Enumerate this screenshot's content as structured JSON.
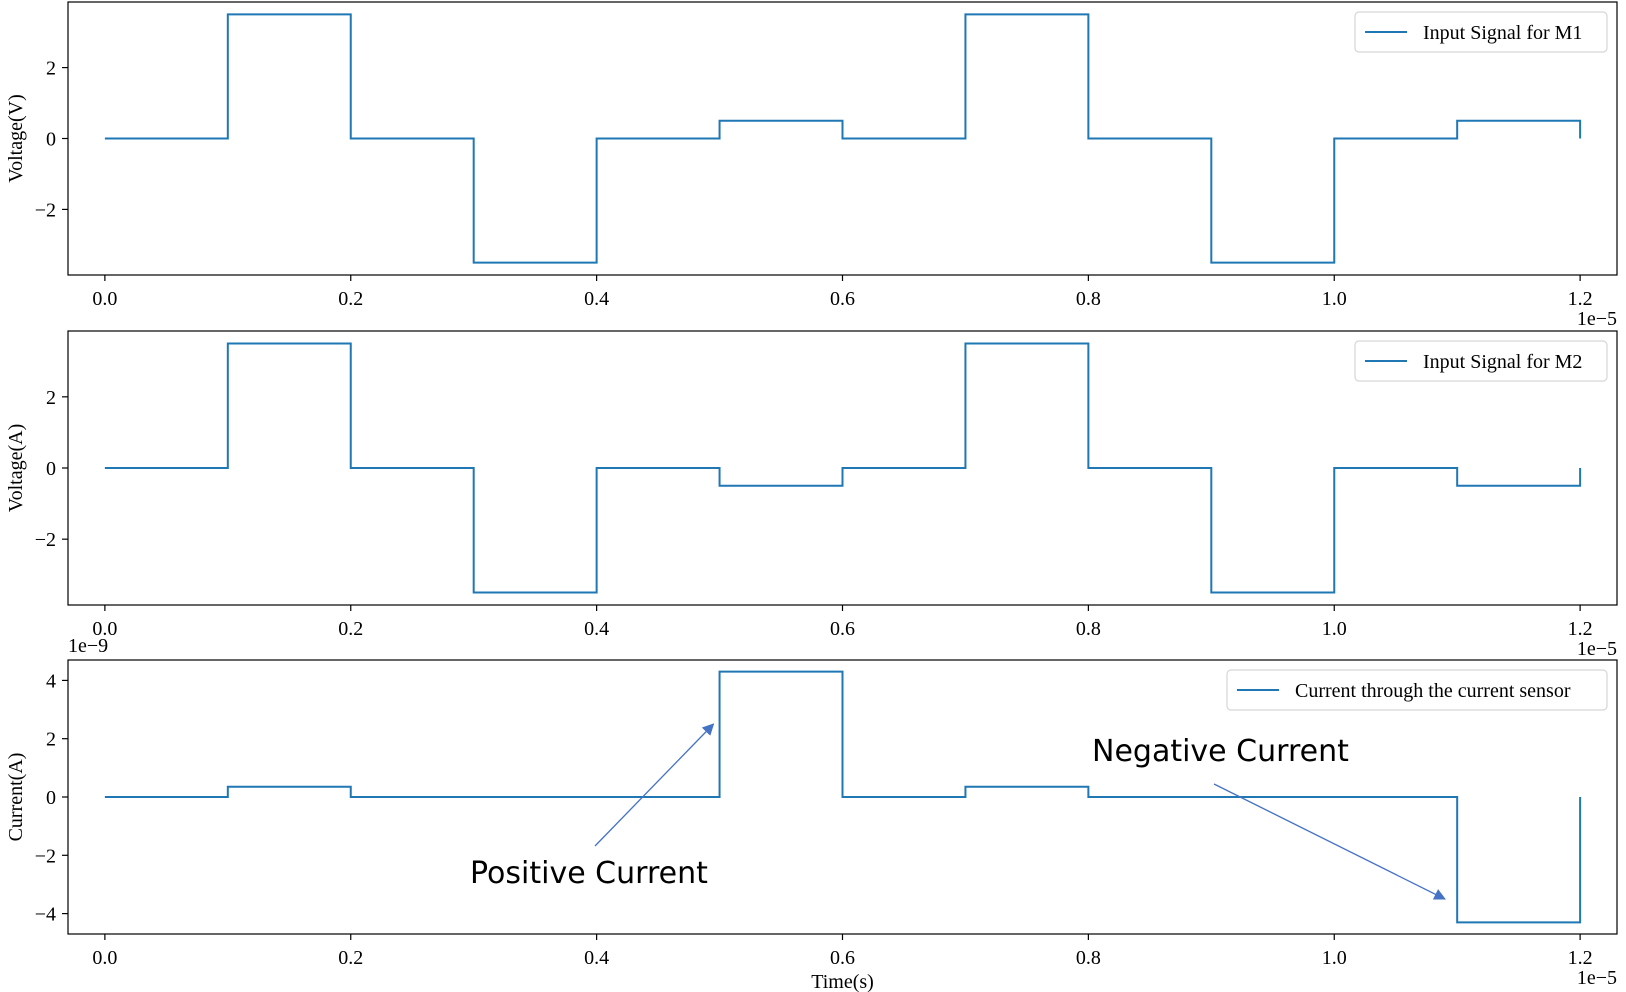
{
  "chart_data": [
    {
      "type": "line",
      "title": "",
      "xlabel": "",
      "ylabel": "Voltage(V)",
      "x_tick_labels": [
        "0.0",
        "0.2",
        "0.4",
        "0.6",
        "0.8",
        "1.0",
        "1.2"
      ],
      "x_offset_label": "1e−5",
      "y_tick_labels": [
        "−2",
        "0",
        "2"
      ],
      "y_offset_label": "",
      "xlim": [
        -3e-07,
        1.23e-05
      ],
      "ylim": [
        -3.85,
        3.85
      ],
      "grid": false,
      "legend_position": "top-right",
      "series": [
        {
          "name": "Input Signal for M1",
          "color": "#1f77b4",
          "drawstyle": "steps-post",
          "x": [
            0,
            1e-06,
            2e-06,
            3e-06,
            4e-06,
            5e-06,
            6e-06,
            7e-06,
            8e-06,
            9e-06,
            1e-05,
            1.1e-05,
            1.2e-05
          ],
          "y": [
            0,
            3.5,
            0,
            -3.5,
            0,
            0.5,
            0,
            3.5,
            0,
            -3.5,
            0,
            0.5,
            0
          ]
        }
      ]
    },
    {
      "type": "line",
      "title": "",
      "xlabel": "",
      "ylabel": "Voltage(A)",
      "x_tick_labels": [
        "0.0",
        "0.2",
        "0.4",
        "0.6",
        "0.8",
        "1.0",
        "1.2"
      ],
      "x_offset_label": "1e−5",
      "y_tick_labels": [
        "−2",
        "0",
        "2"
      ],
      "y_offset_label": "",
      "xlim": [
        -3e-07,
        1.23e-05
      ],
      "ylim": [
        -3.85,
        3.85
      ],
      "grid": false,
      "legend_position": "top-right",
      "series": [
        {
          "name": "Input Signal for M2",
          "color": "#1f77b4",
          "drawstyle": "steps-post",
          "x": [
            0,
            1e-06,
            2e-06,
            3e-06,
            4e-06,
            5e-06,
            6e-06,
            7e-06,
            8e-06,
            9e-06,
            1e-05,
            1.1e-05,
            1.2e-05
          ],
          "y": [
            0,
            3.5,
            0,
            -3.5,
            0,
            -0.5,
            0,
            3.5,
            0,
            -3.5,
            0,
            -0.5,
            0
          ]
        }
      ]
    },
    {
      "type": "line",
      "title": "",
      "xlabel": "Time(s)",
      "ylabel": "Current(A)",
      "x_tick_labels": [
        "0.0",
        "0.2",
        "0.4",
        "0.6",
        "0.8",
        "1.0",
        "1.2"
      ],
      "x_offset_label": "1e−5",
      "y_tick_labels": [
        "−4",
        "−2",
        "0",
        "2",
        "4"
      ],
      "y_offset_label": "1e−9",
      "xlim": [
        -3e-07,
        1.23e-05
      ],
      "ylim": [
        -4.7,
        4.7
      ],
      "grid": false,
      "legend_position": "top-right",
      "series": [
        {
          "name": "Current through the current sensor",
          "color": "#1f77b4",
          "drawstyle": "steps-post",
          "x": [
            0,
            1e-06,
            2e-06,
            3e-06,
            4e-06,
            5e-06,
            6e-06,
            7e-06,
            8e-06,
            9e-06,
            1e-05,
            1.1e-05,
            1.2e-05
          ],
          "y": [
            0,
            0.35,
            0,
            0,
            0,
            4.3,
            0,
            0.35,
            0,
            0,
            0,
            -4.3,
            0
          ]
        }
      ],
      "annotations": [
        {
          "text": "Positive Current",
          "arrow_to": [
            4.95e-06,
            2.5
          ]
        },
        {
          "text": "Negative Current",
          "arrow_to": [
            1.09e-05,
            -3.5
          ]
        }
      ]
    }
  ]
}
